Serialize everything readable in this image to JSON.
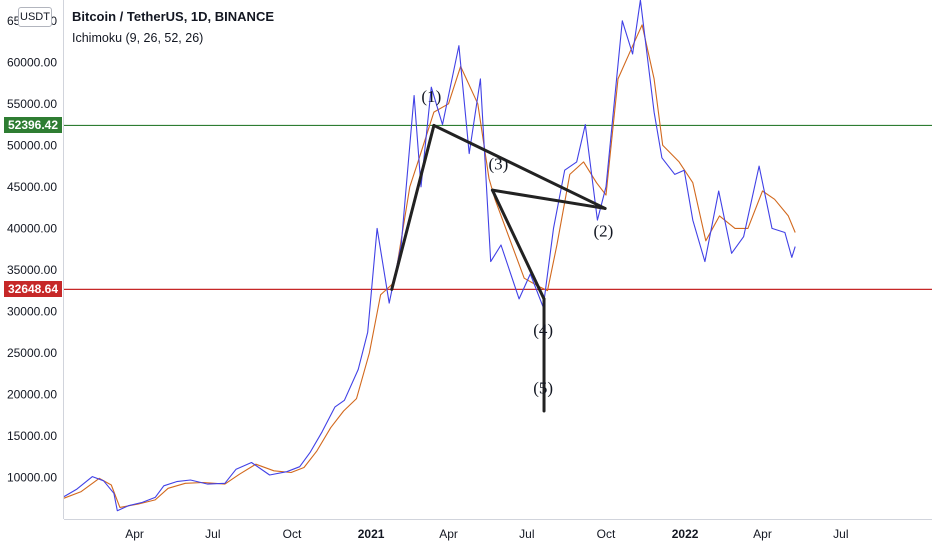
{
  "header": {
    "currency": "USDT",
    "title": "Bitcoin / TetherUS, 1D, BINANCE",
    "indicator": "Ichimoku (9, 26, 52, 26)"
  },
  "colors": {
    "price_line": "#4141e6",
    "baseline": "#d2691e",
    "support_line": "#c62828",
    "resistance_line": "#2e7d32",
    "pattern": "#222222",
    "axis": "#d1d4dc"
  },
  "chart_data": {
    "type": "line",
    "title": "Bitcoin / TetherUS, 1D, BINANCE",
    "ylim": [
      5000,
      67500
    ],
    "xlim": [
      "2020-01-10",
      "2022-10-15"
    ],
    "grid": false,
    "y_ticks": [
      10000,
      15000,
      20000,
      25000,
      30000,
      35000,
      40000,
      45000,
      50000,
      55000,
      60000,
      65000
    ],
    "y_tick_labels": [
      "10000.00",
      "15000.00",
      "20000.00",
      "25000.00",
      "30000.00",
      "35000.00",
      "40000.00",
      "45000.00",
      "50000.00",
      "55000.00",
      "60000.00",
      "65000.00"
    ],
    "x_ticks": [
      {
        "label": "Apr",
        "date": "2020-04-01",
        "year": false
      },
      {
        "label": "Jul",
        "date": "2020-07-01",
        "year": false
      },
      {
        "label": "Oct",
        "date": "2020-10-01",
        "year": false
      },
      {
        "label": "2021",
        "date": "2021-01-01",
        "year": true
      },
      {
        "label": "Apr",
        "date": "2021-04-01",
        "year": false
      },
      {
        "label": "Jul",
        "date": "2021-07-01",
        "year": false
      },
      {
        "label": "Oct",
        "date": "2021-10-01",
        "year": false
      },
      {
        "label": "2022",
        "date": "2022-01-01",
        "year": true
      },
      {
        "label": "Apr",
        "date": "2022-04-01",
        "year": false
      },
      {
        "label": "Jul",
        "date": "2022-07-01",
        "year": false
      }
    ],
    "horizontal_lines": [
      {
        "value": 52396.42,
        "label": "52396.42",
        "color": "#2e7d32"
      },
      {
        "value": 32648.64,
        "label": "32648.64",
        "color": "#c62828"
      }
    ],
    "series": [
      {
        "color": "#4141e6",
        "points": [
          [
            "2020-01-10",
            7700
          ],
          [
            "2020-01-25",
            8600
          ],
          [
            "2020-02-12",
            10100
          ],
          [
            "2020-02-25",
            9600
          ],
          [
            "2020-03-08",
            8100
          ],
          [
            "2020-03-12",
            6000
          ],
          [
            "2020-03-25",
            6600
          ],
          [
            "2020-04-10",
            7000
          ],
          [
            "2020-04-25",
            7600
          ],
          [
            "2020-05-05",
            9000
          ],
          [
            "2020-05-20",
            9500
          ],
          [
            "2020-06-05",
            9700
          ],
          [
            "2020-06-25",
            9200
          ],
          [
            "2020-07-15",
            9300
          ],
          [
            "2020-07-28",
            11000
          ],
          [
            "2020-08-15",
            11800
          ],
          [
            "2020-09-05",
            10300
          ],
          [
            "2020-09-25",
            10700
          ],
          [
            "2020-10-10",
            11300
          ],
          [
            "2020-10-22",
            13000
          ],
          [
            "2020-11-05",
            15500
          ],
          [
            "2020-11-20",
            18500
          ],
          [
            "2020-12-01",
            19300
          ],
          [
            "2020-12-17",
            23000
          ],
          [
            "2020-12-28",
            27500
          ],
          [
            "2021-01-08",
            40000
          ],
          [
            "2021-01-22",
            31000
          ],
          [
            "2021-02-05",
            38000
          ],
          [
            "2021-02-20",
            56000
          ],
          [
            "2021-02-28",
            45000
          ],
          [
            "2021-03-12",
            57000
          ],
          [
            "2021-03-25",
            52500
          ],
          [
            "2021-04-13",
            62000
          ],
          [
            "2021-04-25",
            49000
          ],
          [
            "2021-05-08",
            58000
          ],
          [
            "2021-05-20",
            36000
          ],
          [
            "2021-06-01",
            38000
          ],
          [
            "2021-06-22",
            31500
          ],
          [
            "2021-07-05",
            34500
          ],
          [
            "2021-07-20",
            30500
          ],
          [
            "2021-08-01",
            40000
          ],
          [
            "2021-08-14",
            47000
          ],
          [
            "2021-08-28",
            48000
          ],
          [
            "2021-09-07",
            52500
          ],
          [
            "2021-09-21",
            41000
          ],
          [
            "2021-10-01",
            45000
          ],
          [
            "2021-10-20",
            65000
          ],
          [
            "2021-11-01",
            61000
          ],
          [
            "2021-11-10",
            67500
          ],
          [
            "2021-11-26",
            54000
          ],
          [
            "2021-12-05",
            48500
          ],
          [
            "2021-12-20",
            46500
          ],
          [
            "2021-12-31",
            47000
          ],
          [
            "2022-01-10",
            41000
          ],
          [
            "2022-01-24",
            36000
          ],
          [
            "2022-02-09",
            44500
          ],
          [
            "2022-02-24",
            37000
          ],
          [
            "2022-03-10",
            39000
          ],
          [
            "2022-03-28",
            47500
          ],
          [
            "2022-04-12",
            40000
          ],
          [
            "2022-04-27",
            39500
          ],
          [
            "2022-05-05",
            36500
          ],
          [
            "2022-05-09",
            37800
          ]
        ]
      },
      {
        "color": "#d2691e",
        "points": [
          [
            "2020-01-10",
            7500
          ],
          [
            "2020-01-30",
            8300
          ],
          [
            "2020-02-20",
            9900
          ],
          [
            "2020-03-05",
            9100
          ],
          [
            "2020-03-15",
            6400
          ],
          [
            "2020-04-05",
            6800
          ],
          [
            "2020-04-25",
            7300
          ],
          [
            "2020-05-10",
            8700
          ],
          [
            "2020-05-30",
            9300
          ],
          [
            "2020-06-20",
            9400
          ],
          [
            "2020-07-15",
            9200
          ],
          [
            "2020-08-01",
            10400
          ],
          [
            "2020-08-20",
            11600
          ],
          [
            "2020-09-10",
            10800
          ],
          [
            "2020-09-30",
            10600
          ],
          [
            "2020-10-15",
            11200
          ],
          [
            "2020-10-30",
            13200
          ],
          [
            "2020-11-15",
            16000
          ],
          [
            "2020-11-30",
            18000
          ],
          [
            "2020-12-15",
            19500
          ],
          [
            "2020-12-30",
            25000
          ],
          [
            "2021-01-12",
            32000
          ],
          [
            "2021-01-28",
            33500
          ],
          [
            "2021-02-15",
            45000
          ],
          [
            "2021-02-26",
            48500
          ],
          [
            "2021-03-15",
            54000
          ],
          [
            "2021-04-01",
            55000
          ],
          [
            "2021-04-15",
            59500
          ],
          [
            "2021-05-05",
            55000
          ],
          [
            "2021-05-18",
            46000
          ],
          [
            "2021-05-25",
            43500
          ],
          [
            "2021-06-10",
            39000
          ],
          [
            "2021-06-28",
            34000
          ],
          [
            "2021-07-15",
            33000
          ],
          [
            "2021-07-25",
            32500
          ],
          [
            "2021-08-05",
            38000
          ],
          [
            "2021-08-20",
            46500
          ],
          [
            "2021-09-05",
            48000
          ],
          [
            "2021-09-20",
            45500
          ],
          [
            "2021-10-01",
            44000
          ],
          [
            "2021-10-15",
            58000
          ],
          [
            "2021-10-30",
            61500
          ],
          [
            "2021-11-12",
            64500
          ],
          [
            "2021-11-26",
            58000
          ],
          [
            "2021-12-06",
            50000
          ],
          [
            "2021-12-25",
            48000
          ],
          [
            "2022-01-10",
            45500
          ],
          [
            "2022-01-25",
            38500
          ],
          [
            "2022-02-10",
            41500
          ],
          [
            "2022-02-28",
            40000
          ],
          [
            "2022-03-15",
            40000
          ],
          [
            "2022-04-01",
            44500
          ],
          [
            "2022-04-15",
            43500
          ],
          [
            "2022-05-01",
            41500
          ],
          [
            "2022-05-09",
            39500
          ]
        ]
      }
    ],
    "pattern_lines": [
      [
        [
          "2021-01-25",
          32648.64
        ],
        [
          "2021-03-15",
          52396.42
        ]
      ],
      [
        [
          "2021-03-15",
          52396.42
        ],
        [
          "2021-09-30",
          42400
        ]
      ],
      [
        [
          "2021-09-30",
          42400
        ],
        [
          "2021-05-22",
          44600
        ]
      ],
      [
        [
          "2021-05-22",
          44600
        ],
        [
          "2021-07-21",
          31500
        ]
      ],
      [
        [
          "2021-07-21",
          31500
        ],
        [
          "2021-07-21",
          18000
        ]
      ]
    ],
    "annotations": [
      {
        "label": "(1)",
        "date": "2021-03-12",
        "value": 55200
      },
      {
        "label": "(3)",
        "date": "2021-05-29",
        "value": 47100
      },
      {
        "label": "(2)",
        "date": "2021-09-28",
        "value": 39000
      },
      {
        "label": "(4)",
        "date": "2021-07-20",
        "value": 27100
      },
      {
        "label": "(5)",
        "date": "2021-07-20",
        "value": 20100
      }
    ]
  }
}
